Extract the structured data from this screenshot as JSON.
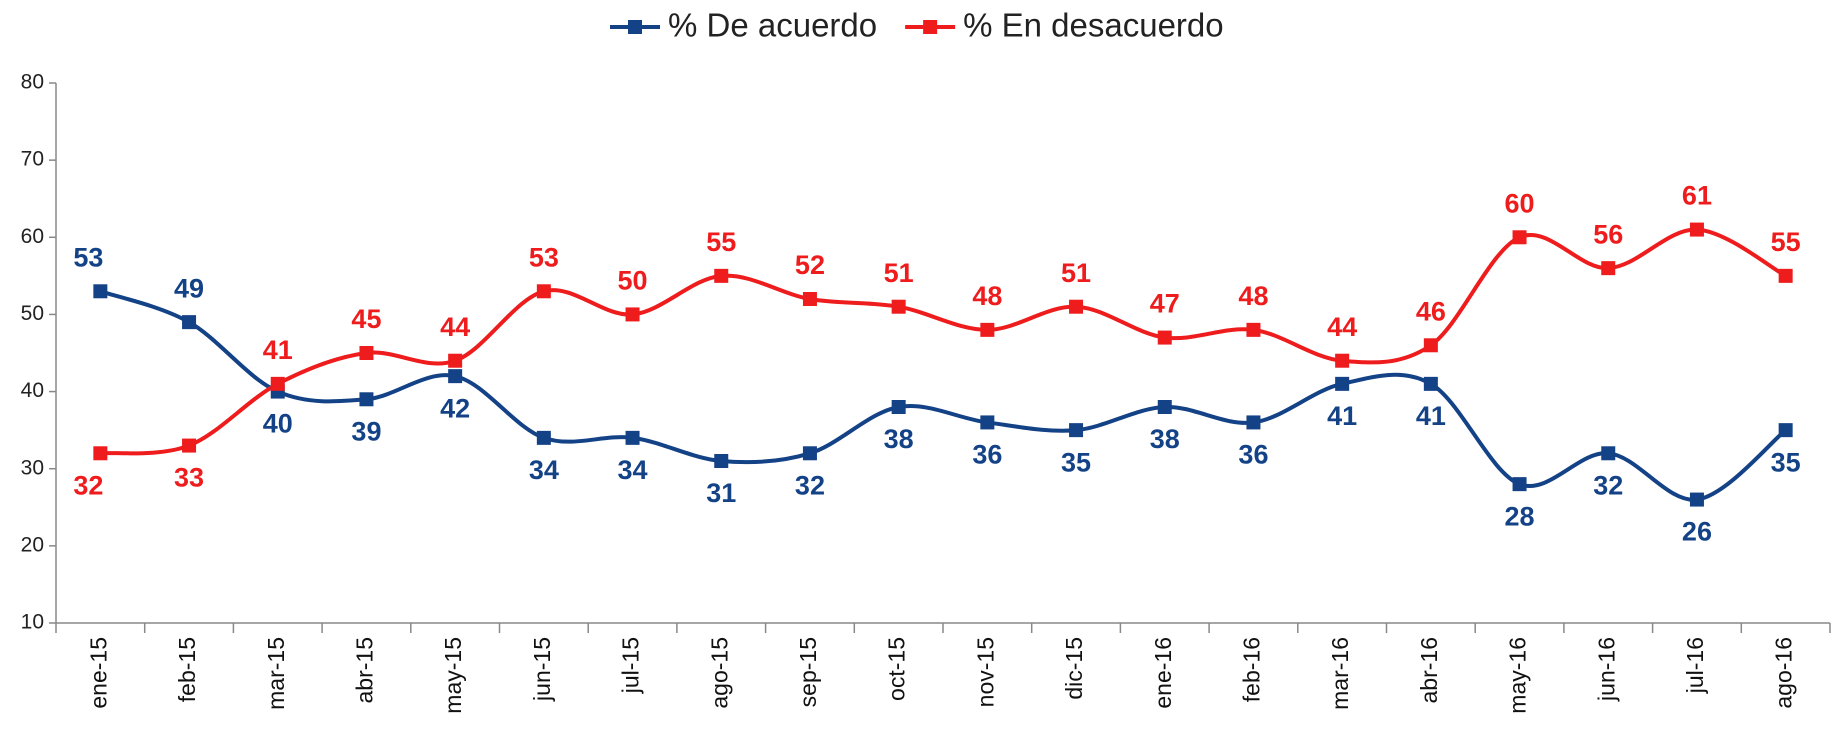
{
  "chart_data": {
    "type": "line",
    "categories": [
      "ene-15",
      "feb-15",
      "mar-15",
      "abr-15",
      "may-15",
      "jun-15",
      "jul-15",
      "ago-15",
      "sep-15",
      "oct-15",
      "nov-15",
      "dic-15",
      "ene-16",
      "feb-16",
      "mar-16",
      "abr-16",
      "may-16",
      "jun-16",
      "jul-16",
      "ago-16"
    ],
    "series": [
      {
        "name": "% De acuerdo",
        "color": "#144287",
        "values": [
          53,
          49,
          40,
          39,
          42,
          34,
          34,
          31,
          32,
          38,
          36,
          35,
          38,
          36,
          41,
          41,
          28,
          32,
          26,
          35
        ]
      },
      {
        "name": "% En desacuerdo",
        "color": "#ee1c1c",
        "values": [
          32,
          33,
          41,
          45,
          44,
          53,
          50,
          55,
          52,
          51,
          48,
          51,
          47,
          48,
          44,
          46,
          60,
          56,
          61,
          55
        ]
      }
    ],
    "ylim": [
      10,
      80
    ],
    "yticks": [
      10,
      20,
      30,
      40,
      50,
      60,
      70,
      80
    ],
    "legend": "top",
    "smooth": true,
    "data_labels": true
  }
}
